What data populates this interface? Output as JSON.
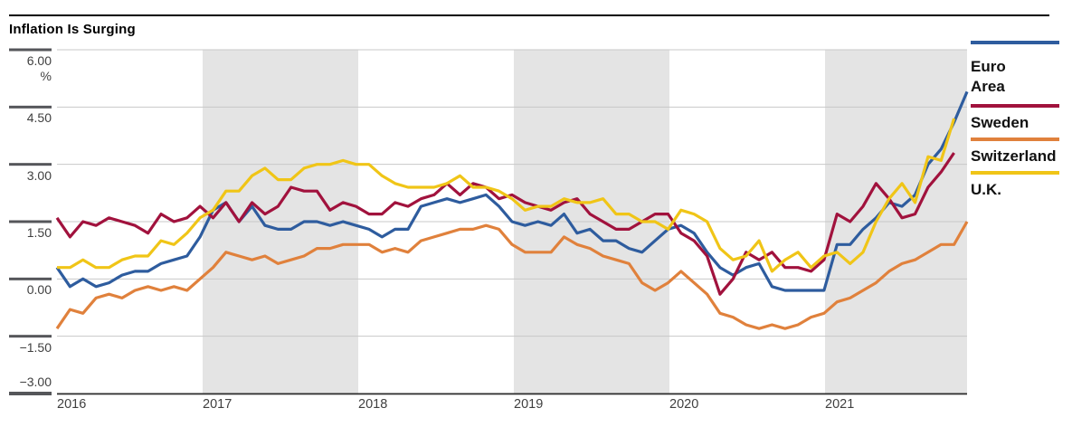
{
  "title": "Inflation Is Surging",
  "axis": {
    "y_unit": "%",
    "y_labels": [
      "6.00",
      "4.50",
      "3.00",
      "1.50",
      "0.00",
      "−1.50",
      "−3.00"
    ],
    "x_labels": [
      "2016",
      "2017",
      "2018",
      "2019",
      "2020",
      "2021"
    ]
  },
  "legend": {
    "items": [
      {
        "line1": "Euro",
        "line2": "Area"
      },
      {
        "line1": "Sweden",
        "line2": ""
      },
      {
        "line1": "Switzerland",
        "line2": ""
      },
      {
        "line1": "U.K.",
        "line2": ""
      }
    ]
  },
  "colors": {
    "euro_area": "#2e5c9e",
    "sweden": "#a1123d",
    "switzerland": "#e0813c",
    "uk": "#f0c517",
    "year_band": "#e4e4e4",
    "gridline": "#c8c8c8",
    "axis_line": "#2e2e2e",
    "tick": "#55565a"
  },
  "chart_data": {
    "type": "line",
    "title": "Inflation Is Surging",
    "ylabel": "%",
    "ylim": [
      -3,
      6
    ],
    "y_ticks": [
      6.0,
      4.5,
      3.0,
      1.5,
      0.0,
      -1.5,
      -3.0
    ],
    "x_start": "2016-01",
    "frequency": "monthly",
    "x_tick_years": [
      2016,
      2017,
      2018,
      2019,
      2020,
      2021
    ],
    "shaded_year_bands": [
      2017,
      2019,
      2021
    ],
    "grid": true,
    "legend_position": "right",
    "series": [
      {
        "name": "Euro Area",
        "color": "#2e5c9e",
        "values": [
          0.3,
          -0.2,
          0.0,
          -0.2,
          -0.1,
          0.1,
          0.2,
          0.2,
          0.4,
          0.5,
          0.6,
          1.1,
          1.8,
          2.0,
          1.5,
          1.9,
          1.4,
          1.3,
          1.3,
          1.5,
          1.5,
          1.4,
          1.5,
          1.4,
          1.3,
          1.1,
          1.3,
          1.3,
          1.9,
          2.0,
          2.1,
          2.0,
          2.1,
          2.2,
          1.9,
          1.5,
          1.4,
          1.5,
          1.4,
          1.7,
          1.2,
          1.3,
          1.0,
          1.0,
          0.8,
          0.7,
          1.0,
          1.3,
          1.4,
          1.2,
          0.7,
          0.3,
          0.1,
          0.3,
          0.4,
          -0.2,
          -0.3,
          -0.3,
          -0.3,
          -0.3,
          0.9,
          0.9,
          1.3,
          1.6,
          2.0,
          1.9,
          2.2,
          3.0,
          3.4,
          4.1,
          4.9
        ]
      },
      {
        "name": "Sweden",
        "color": "#a1123d",
        "values": [
          1.6,
          1.1,
          1.5,
          1.4,
          1.6,
          1.5,
          1.4,
          1.2,
          1.7,
          1.5,
          1.6,
          1.9,
          1.6,
          2.0,
          1.5,
          2.0,
          1.7,
          1.9,
          2.4,
          2.3,
          2.3,
          1.8,
          2.0,
          1.9,
          1.7,
          1.7,
          2.0,
          1.9,
          2.1,
          2.2,
          2.5,
          2.2,
          2.5,
          2.4,
          2.1,
          2.2,
          2.0,
          1.9,
          1.8,
          2.0,
          2.1,
          1.7,
          1.5,
          1.3,
          1.3,
          1.5,
          1.7,
          1.7,
          1.2,
          1.0,
          0.6,
          -0.4,
          0.0,
          0.7,
          0.5,
          0.7,
          0.3,
          0.3,
          0.2,
          0.5,
          1.7,
          1.5,
          1.9,
          2.5,
          2.1,
          1.6,
          1.7,
          2.4,
          2.8,
          3.3
        ]
      },
      {
        "name": "Switzerland",
        "color": "#e0813c",
        "values": [
          -1.3,
          -0.8,
          -0.9,
          -0.5,
          -0.4,
          -0.5,
          -0.3,
          -0.2,
          -0.3,
          -0.2,
          -0.3,
          0.0,
          0.3,
          0.7,
          0.6,
          0.5,
          0.6,
          0.4,
          0.5,
          0.6,
          0.8,
          0.8,
          0.9,
          0.9,
          0.9,
          0.7,
          0.8,
          0.7,
          1.0,
          1.1,
          1.2,
          1.3,
          1.3,
          1.4,
          1.3,
          0.9,
          0.7,
          0.7,
          0.7,
          1.1,
          0.9,
          0.8,
          0.6,
          0.5,
          0.4,
          -0.1,
          -0.3,
          -0.1,
          0.2,
          -0.1,
          -0.4,
          -0.9,
          -1.0,
          -1.2,
          -1.3,
          -1.2,
          -1.3,
          -1.2,
          -1.0,
          -0.9,
          -0.6,
          -0.5,
          -0.3,
          -0.1,
          0.2,
          0.4,
          0.5,
          0.7,
          0.9,
          0.9,
          1.5
        ]
      },
      {
        "name": "U.K.",
        "color": "#f0c517",
        "values": [
          0.3,
          0.3,
          0.5,
          0.3,
          0.3,
          0.5,
          0.6,
          0.6,
          1.0,
          0.9,
          1.2,
          1.6,
          1.8,
          2.3,
          2.3,
          2.7,
          2.9,
          2.6,
          2.6,
          2.9,
          3.0,
          3.0,
          3.1,
          3.0,
          3.0,
          2.7,
          2.5,
          2.4,
          2.4,
          2.4,
          2.5,
          2.7,
          2.4,
          2.4,
          2.3,
          2.1,
          1.8,
          1.9,
          1.9,
          2.1,
          2.0,
          2.0,
          2.1,
          1.7,
          1.7,
          1.5,
          1.5,
          1.3,
          1.8,
          1.7,
          1.5,
          0.8,
          0.5,
          0.6,
          1.0,
          0.2,
          0.5,
          0.7,
          0.3,
          0.6,
          0.7,
          0.4,
          0.7,
          1.5,
          2.1,
          2.5,
          2.0,
          3.2,
          3.1,
          4.2
        ]
      }
    ]
  }
}
